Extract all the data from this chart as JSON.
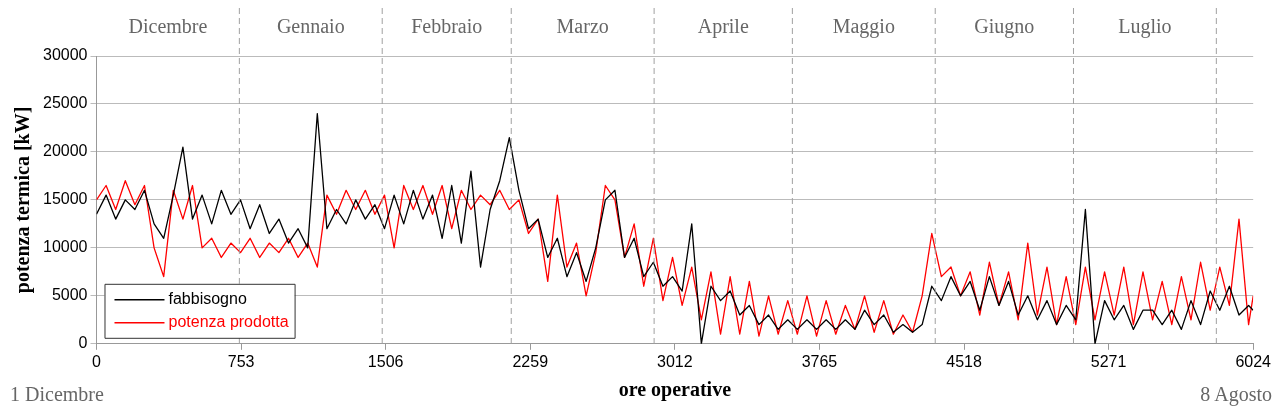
{
  "chart_data": {
    "type": "line",
    "xlabel": "ore operative",
    "ylabel": "potenza termica [kW]",
    "annotations": [
      "1 Dicembre",
      "8 Agosto",
      "Dicembre",
      "Gennaio",
      "Febbraio",
      "Marzo",
      "Aprile",
      "Maggio",
      "Giugno",
      "Luglio"
    ],
    "xlim": [
      0,
      6024
    ],
    "xticks": [
      0,
      753,
      1506,
      2259,
      3012,
      3765,
      4518,
      5271,
      6024
    ],
    "ylim": [
      0,
      30000
    ],
    "yticks": [
      0,
      5000,
      10000,
      15000,
      20000,
      25000,
      30000
    ],
    "ref_lines": [
      {
        "axis": "x",
        "value": 744,
        "color": "#a0a0a0",
        "line_style": "dashed"
      },
      {
        "axis": "x",
        "value": 1488,
        "color": "#a0a0a0",
        "line_style": "dashed"
      },
      {
        "axis": "x",
        "value": 2160,
        "color": "#a0a0a0",
        "line_style": "dashed"
      },
      {
        "axis": "x",
        "value": 2904,
        "color": "#a0a0a0",
        "line_style": "dashed"
      },
      {
        "axis": "x",
        "value": 3624,
        "color": "#a0a0a0",
        "line_style": "dashed"
      },
      {
        "axis": "x",
        "value": 4368,
        "color": "#a0a0a0",
        "line_style": "dashed"
      },
      {
        "axis": "x",
        "value": 5088,
        "color": "#a0a0a0",
        "line_style": "dashed"
      },
      {
        "axis": "x",
        "value": 5832,
        "color": "#a0a0a0",
        "line_style": "dashed"
      }
    ],
    "grid": "y",
    "legend": "bottom left",
    "marker": "none",
    "line_style": "solid",
    "x": [
      0,
      50,
      100,
      150,
      200,
      250,
      300,
      350,
      400,
      450,
      500,
      550,
      600,
      650,
      700,
      750,
      800,
      850,
      900,
      950,
      1000,
      1050,
      1100,
      1150,
      1200,
      1250,
      1300,
      1350,
      1400,
      1450,
      1500,
      1550,
      1600,
      1650,
      1700,
      1750,
      1800,
      1850,
      1900,
      1950,
      2000,
      2050,
      2100,
      2150,
      2200,
      2250,
      2300,
      2350,
      2400,
      2450,
      2500,
      2550,
      2600,
      2650,
      2700,
      2750,
      2800,
      2850,
      2900,
      2950,
      3000,
      3050,
      3100,
      3150,
      3200,
      3250,
      3300,
      3350,
      3400,
      3450,
      3500,
      3550,
      3600,
      3650,
      3700,
      3750,
      3800,
      3850,
      3900,
      3950,
      4000,
      4050,
      4100,
      4150,
      4200,
      4250,
      4300,
      4350,
      4400,
      4450,
      4500,
      4550,
      4600,
      4650,
      4700,
      4750,
      4800,
      4850,
      4900,
      4950,
      5000,
      5050,
      5100,
      5150,
      5200,
      5250,
      5300,
      5350,
      5400,
      5450,
      5500,
      5550,
      5600,
      5650,
      5700,
      5750,
      5800,
      5850,
      5900,
      5950,
      6000,
      6024
    ],
    "series": [
      {
        "name": "fabbisogno",
        "color": "#000000",
        "values": [
          13500,
          15500,
          13000,
          15000,
          14000,
          16000,
          12500,
          11000,
          15500,
          20500,
          13000,
          15500,
          12500,
          16000,
          13500,
          15000,
          12000,
          14500,
          11500,
          13000,
          10500,
          12000,
          10000,
          24000,
          12000,
          14000,
          12500,
          15000,
          13000,
          14500,
          12000,
          15500,
          12500,
          16000,
          13000,
          15500,
          11000,
          16500,
          10500,
          18000,
          8000,
          14000,
          17000,
          21500,
          16000,
          12000,
          13000,
          9000,
          11000,
          7000,
          9500,
          6500,
          10000,
          15000,
          16000,
          9000,
          11000,
          7000,
          8500,
          6000,
          7000,
          5500,
          12500,
          0,
          6000,
          4500,
          5500,
          3000,
          4000,
          2000,
          3000,
          1500,
          2500,
          1500,
          2500,
          1500,
          2500,
          1500,
          2500,
          1500,
          3500,
          2000,
          3000,
          1200,
          2000,
          1200,
          2000,
          6000,
          4500,
          7000,
          5000,
          6500,
          3500,
          7000,
          4000,
          6500,
          3000,
          5000,
          2500,
          4500,
          2000,
          4000,
          2500,
          14000,
          0,
          4500,
          2500,
          4000,
          1500,
          3500,
          3500,
          2000,
          3500,
          1500,
          4500,
          2000,
          5500,
          3500,
          6000,
          3000,
          4000,
          3500
        ]
      },
      {
        "name": "potenza prodotta",
        "color": "#ff0000",
        "values": [
          15000,
          16500,
          14000,
          17000,
          14500,
          16500,
          10000,
          7000,
          16000,
          13000,
          16500,
          10000,
          11000,
          9000,
          10500,
          9500,
          11000,
          9000,
          10500,
          9500,
          11000,
          9000,
          10500,
          8000,
          15500,
          13500,
          16000,
          14000,
          16000,
          13500,
          15500,
          10000,
          16500,
          14000,
          16500,
          13500,
          16500,
          12000,
          16000,
          14000,
          15500,
          14500,
          16000,
          14000,
          15000,
          11500,
          13000,
          6500,
          15500,
          8000,
          10500,
          5000,
          9500,
          16500,
          15000,
          9000,
          12500,
          6000,
          11000,
          4500,
          9000,
          4000,
          8000,
          2500,
          7500,
          1000,
          7000,
          1000,
          6500,
          800,
          5000,
          1000,
          4500,
          1000,
          5000,
          800,
          4500,
          1000,
          4000,
          1500,
          5000,
          1200,
          4500,
          1000,
          3000,
          1200,
          5000,
          11500,
          7000,
          8000,
          5000,
          7500,
          3000,
          8500,
          4000,
          7500,
          2500,
          10500,
          3000,
          8000,
          2000,
          7000,
          2000,
          8000,
          2500,
          7500,
          3000,
          8000,
          2000,
          7500,
          2500,
          6500,
          2000,
          7000,
          2500,
          8500,
          3500,
          8000,
          4000,
          13000,
          2000,
          5000
        ]
      }
    ]
  }
}
